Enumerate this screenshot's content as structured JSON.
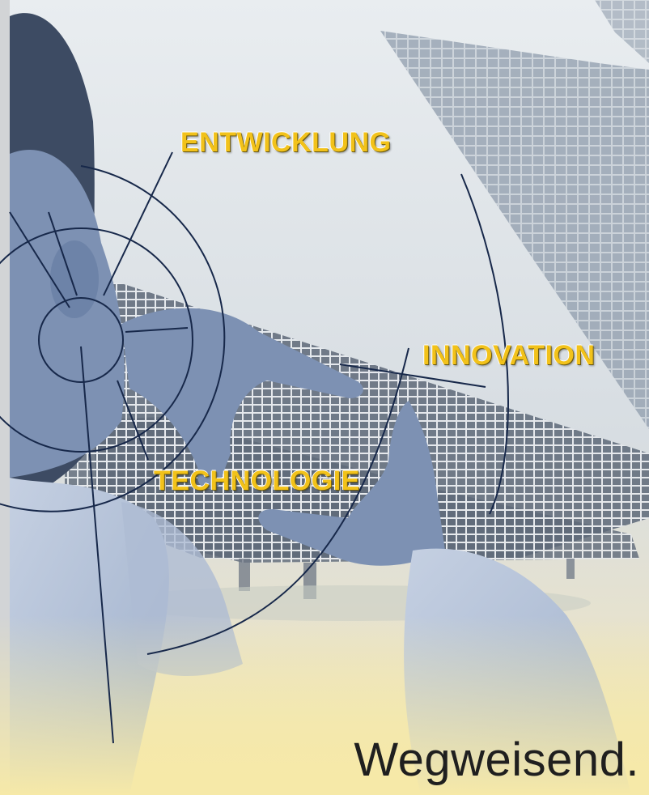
{
  "keywords": {
    "entwicklung": "ENTWICKLUNG",
    "innovation": "INNOVATION",
    "technologie": "TECHNOLOGIE"
  },
  "slogan": "Wegweisend.",
  "colors": {
    "keyword": "#f2c21a",
    "line": "#17284a",
    "slogan": "#1f1f1f",
    "figure": "#7e93b5"
  }
}
